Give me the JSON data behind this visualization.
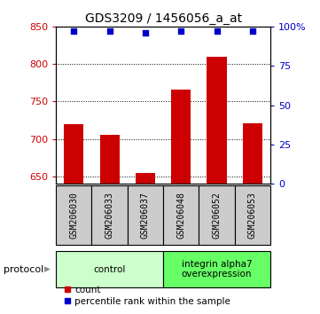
{
  "title": "GDS3209 / 1456056_a_at",
  "samples": [
    "GSM206030",
    "GSM206033",
    "GSM206037",
    "GSM206048",
    "GSM206052",
    "GSM206053"
  ],
  "counts": [
    720,
    705,
    654,
    766,
    810,
    721
  ],
  "percentile_ranks": [
    97,
    97,
    96,
    97,
    97,
    97
  ],
  "ylim_left": [
    640,
    850
  ],
  "ylim_right": [
    0,
    100
  ],
  "yticks_left": [
    650,
    700,
    750,
    800,
    850
  ],
  "yticks_right": [
    0,
    25,
    50,
    75,
    100
  ],
  "bar_color": "#cc0000",
  "scatter_color": "#0000cc",
  "bar_width": 0.55,
  "groups": [
    {
      "label": "control",
      "n": 3,
      "color": "#ccffcc",
      "border_color": "#00cc00"
    },
    {
      "label": "integrin alpha7\noverexpression",
      "n": 3,
      "color": "#66ff66",
      "border_color": "#00cc00"
    }
  ],
  "protocol_label": "protocol",
  "legend_count_label": "count",
  "legend_pct_label": "percentile rank within the sample",
  "left_axis_color": "#cc0000",
  "right_axis_color": "#0000cc",
  "grid_color": "#000000",
  "tick_label_area_color": "#cccccc",
  "title_fontsize": 10
}
